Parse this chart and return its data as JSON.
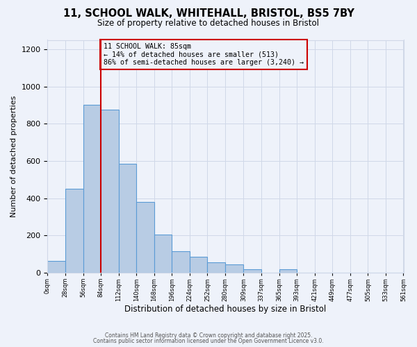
{
  "title": "11, SCHOOL WALK, WHITEHALL, BRISTOL, BS5 7BY",
  "subtitle": "Size of property relative to detached houses in Bristol",
  "xlabel": "Distribution of detached houses by size in Bristol",
  "ylabel": "Number of detached properties",
  "bar_heights": [
    65,
    450,
    900,
    875,
    585,
    380,
    205,
    115,
    85,
    55,
    45,
    20,
    0,
    20,
    0,
    0,
    0,
    0,
    0,
    0
  ],
  "bin_edges": [
    0,
    28,
    56,
    84,
    112,
    140,
    168,
    196,
    224,
    252,
    280,
    309,
    337,
    365,
    393,
    421,
    449,
    477,
    505,
    533,
    561
  ],
  "tick_labels": [
    "0sqm",
    "28sqm",
    "56sqm",
    "84sqm",
    "112sqm",
    "140sqm",
    "168sqm",
    "196sqm",
    "224sqm",
    "252sqm",
    "280sqm",
    "309sqm",
    "337sqm",
    "365sqm",
    "393sqm",
    "421sqm",
    "449sqm",
    "477sqm",
    "505sqm",
    "533sqm",
    "561sqm"
  ],
  "bar_color": "#b8cce4",
  "bar_edge_color": "#5b9bd5",
  "grid_color": "#d0d8e8",
  "background_color": "#eef2fa",
  "vline_x": 84,
  "vline_color": "#cc0000",
  "annotation_title": "11 SCHOOL WALK: 85sqm",
  "annotation_line1": "← 14% of detached houses are smaller (513)",
  "annotation_line2": "86% of semi-detached houses are larger (3,240) →",
  "annotation_box_color": "#cc0000",
  "ylim": [
    0,
    1250
  ],
  "yticks": [
    0,
    200,
    400,
    600,
    800,
    1000,
    1200
  ],
  "footer1": "Contains HM Land Registry data © Crown copyright and database right 2025.",
  "footer2": "Contains public sector information licensed under the Open Government Licence v3.0."
}
